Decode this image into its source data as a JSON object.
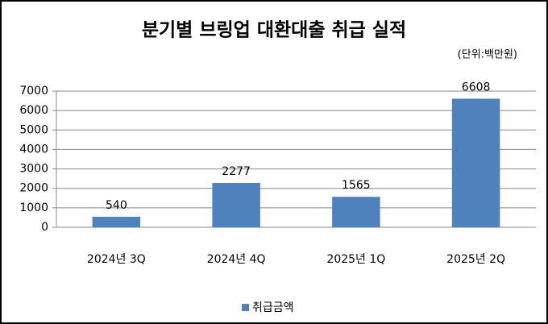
{
  "chart_data": {
    "type": "bar",
    "title": "분기별 브링업 대환대출 취급 실적",
    "subtitle": "(단위:백만원)",
    "categories": [
      "2024년 3Q",
      "2024년 4Q",
      "2025년 1Q",
      "2025년 2Q"
    ],
    "series": [
      {
        "name": "취급금액",
        "color": "#4f81bd",
        "values": [
          540,
          2277,
          1565,
          6608
        ]
      }
    ],
    "ylim": [
      0,
      7000
    ],
    "yticks": [
      0,
      1000,
      2000,
      3000,
      4000,
      5000,
      6000,
      7000
    ],
    "grid": true,
    "legend": "bottom"
  }
}
